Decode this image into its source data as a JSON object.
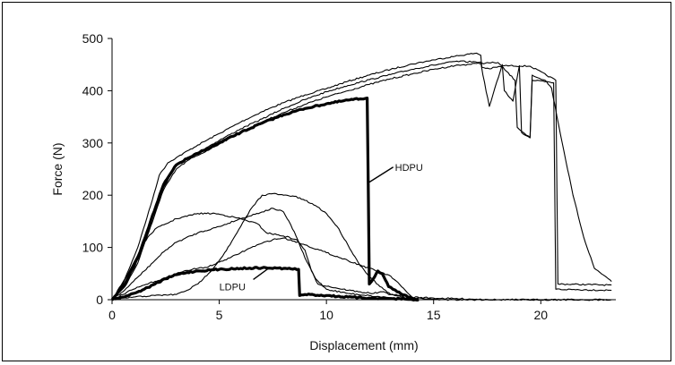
{
  "chart_data": {
    "type": "line",
    "title": "",
    "xlabel": "Displacement (mm)",
    "ylabel": "Force (N)",
    "xlim": [
      0,
      23.5
    ],
    "ylim": [
      0,
      500
    ],
    "x_ticks": [
      0,
      5,
      10,
      15,
      20
    ],
    "y_ticks": [
      0,
      100,
      200,
      300,
      400,
      500
    ],
    "grid": false,
    "legend": "none",
    "annotations": [
      {
        "text": "HDPU",
        "x": 13.2,
        "y": 247,
        "arrow_to": [
          12.0,
          225
        ]
      },
      {
        "text": "LDPU",
        "x": 5.0,
        "y": 18,
        "arrow_to": [
          7.3,
          60
        ]
      }
    ],
    "series": [
      {
        "group": "HDPU",
        "style": "thin",
        "color": "#000000",
        "x": [
          0,
          0.6,
          1.2,
          1.8,
          2.2,
          2.6,
          3.0,
          4,
          5,
          6,
          7,
          8,
          9,
          10,
          11,
          12,
          13,
          14,
          15,
          16,
          17,
          17.2,
          17.25,
          17.6,
          18.3,
          19.5,
          20.7,
          20.8,
          23.3
        ],
        "y": [
          0,
          40,
          100,
          180,
          238,
          262,
          272,
          296,
          318,
          340,
          360,
          377,
          392,
          404,
          418,
          430,
          441,
          451,
          459,
          466,
          472,
          468,
          445,
          442,
          448,
          447,
          420,
          30,
          28
        ]
      },
      {
        "group": "HDPU",
        "style": "thin",
        "color": "#000000",
        "x": [
          0,
          0.6,
          1.2,
          1.8,
          2.4,
          3.0,
          3.5,
          4,
          5,
          6,
          7,
          8,
          9,
          10,
          11,
          12,
          13,
          14,
          15,
          16,
          17.2,
          17.3,
          17.6,
          18.2,
          18.3,
          18.7,
          19.0,
          19.1,
          19.5,
          19.6,
          20.2,
          20.5,
          21.0,
          21.5,
          22.0,
          22.5,
          23.0,
          23.3
        ],
        "y": [
          0,
          30,
          80,
          150,
          215,
          258,
          272,
          282,
          305,
          327,
          346,
          366,
          383,
          398,
          410,
          421,
          431,
          441,
          449,
          456,
          455,
          430,
          370,
          450,
          400,
          380,
          448,
          320,
          310,
          430,
          420,
          405,
          300,
          200,
          120,
          60,
          45,
          35
        ]
      },
      {
        "group": "HDPU",
        "style": "thin",
        "color": "#000000",
        "x": [
          0,
          0.6,
          1.2,
          1.8,
          2.4,
          3.0,
          3.6,
          4,
          5,
          6,
          7,
          8,
          9,
          10,
          11,
          12,
          13,
          14,
          15,
          16,
          17,
          18,
          18.8,
          18.9,
          19.5,
          19.6,
          20.6,
          20.7,
          23.3
        ],
        "y": [
          0,
          25,
          70,
          140,
          210,
          250,
          268,
          276,
          298,
          320,
          340,
          358,
          374,
          388,
          400,
          412,
          423,
          432,
          441,
          448,
          452,
          454,
          420,
          330,
          310,
          420,
          415,
          20,
          18
        ]
      },
      {
        "group": "HDPU",
        "style": "thick",
        "color": "#000000",
        "x": [
          0,
          0.6,
          1.2,
          1.8,
          2.4,
          3.0,
          3.5,
          4,
          5,
          6,
          7,
          8,
          9,
          10,
          11,
          11.9,
          11.95,
          12.0,
          12.1,
          12.4,
          12.6,
          12.9,
          13.1,
          13.3,
          13.8,
          14.0,
          14.3
        ],
        "y": [
          0,
          30,
          80,
          150,
          220,
          258,
          270,
          280,
          300,
          320,
          338,
          354,
          366,
          375,
          382,
          386,
          220,
          30,
          35,
          55,
          50,
          25,
          20,
          15,
          5,
          2,
          0
        ]
      },
      {
        "group": "LDPU",
        "style": "thin",
        "color": "#000000",
        "x": [
          0,
          0.5,
          1.0,
          1.5,
          2,
          2.5,
          3,
          4,
          4.8,
          5.2,
          6,
          6.8,
          7.2,
          8,
          8.6,
          9,
          9.3,
          9.6,
          10.5,
          11.5,
          12.2,
          12.6,
          13.0,
          13.4,
          14.0,
          15,
          16,
          17,
          18,
          19,
          20,
          21,
          22,
          23,
          23.3
        ],
        "y": [
          0,
          30,
          70,
          110,
          135,
          145,
          155,
          165,
          165,
          162,
          155,
          145,
          128,
          122,
          115,
          95,
          55,
          30,
          22,
          15,
          12,
          15,
          10,
          8,
          5,
          3,
          2,
          1,
          0,
          0,
          0,
          0,
          0,
          0,
          0
        ]
      },
      {
        "group": "LDPU",
        "style": "thin",
        "color": "#000000",
        "x": [
          0,
          0.5,
          1.0,
          1.5,
          2,
          2.5,
          3,
          4,
          5,
          6,
          7,
          7.5,
          8,
          8.5,
          9,
          9.5,
          10,
          11,
          12,
          12.3,
          13,
          13.5,
          14
        ],
        "y": [
          0,
          15,
          35,
          55,
          75,
          95,
          110,
          128,
          140,
          155,
          168,
          175,
          168,
          130,
          80,
          40,
          20,
          12,
          8,
          6,
          4,
          2,
          0
        ]
      },
      {
        "group": "LDPU",
        "style": "thin",
        "color": "#000000",
        "x": [
          0,
          0.5,
          1.0,
          1.5,
          2,
          2.5,
          3,
          3.5,
          4,
          4.5,
          5,
          5.5,
          6,
          6.5,
          7,
          7.5,
          8,
          8.5,
          9,
          10,
          11,
          12,
          13,
          13.5,
          14
        ],
        "y": [
          0,
          10,
          20,
          28,
          35,
          42,
          50,
          56,
          60,
          63,
          72,
          80,
          90,
          100,
          108,
          115,
          118,
          112,
          105,
          90,
          75,
          60,
          45,
          25,
          5
        ]
      },
      {
        "group": "LDPU",
        "style": "thin",
        "color": "#000000",
        "x": [
          0,
          1,
          2,
          3,
          3.5,
          4,
          4.5,
          5,
          5.5,
          6,
          6.5,
          7,
          7.5,
          8,
          8.5,
          9,
          9.5,
          10,
          10.5,
          11,
          11.5,
          12,
          12.5,
          13,
          13.5,
          14,
          14.5,
          15,
          15.5,
          16,
          17,
          18,
          19,
          20,
          21,
          22,
          23,
          23.3
        ],
        "y": [
          0,
          5,
          8,
          10,
          18,
          30,
          50,
          75,
          105,
          140,
          175,
          200,
          203,
          200,
          198,
          190,
          180,
          165,
          140,
          105,
          70,
          45,
          25,
          10,
          5,
          3,
          2,
          1,
          0,
          0,
          0,
          0,
          0,
          0,
          0,
          0,
          0,
          0
        ]
      },
      {
        "group": "LDPU",
        "style": "thick",
        "color": "#000000",
        "x": [
          0,
          0.5,
          1,
          1.5,
          2,
          2.5,
          3,
          3.5,
          4,
          5,
          6,
          7,
          8,
          8.7,
          8.75,
          9,
          10,
          11,
          12,
          12.5,
          13,
          13.5,
          14,
          14.3
        ],
        "y": [
          0,
          5,
          12,
          20,
          30,
          40,
          48,
          52,
          55,
          58,
          60,
          61,
          60,
          58,
          8,
          10,
          8,
          5,
          3,
          3,
          2,
          1,
          0,
          0
        ]
      }
    ]
  }
}
